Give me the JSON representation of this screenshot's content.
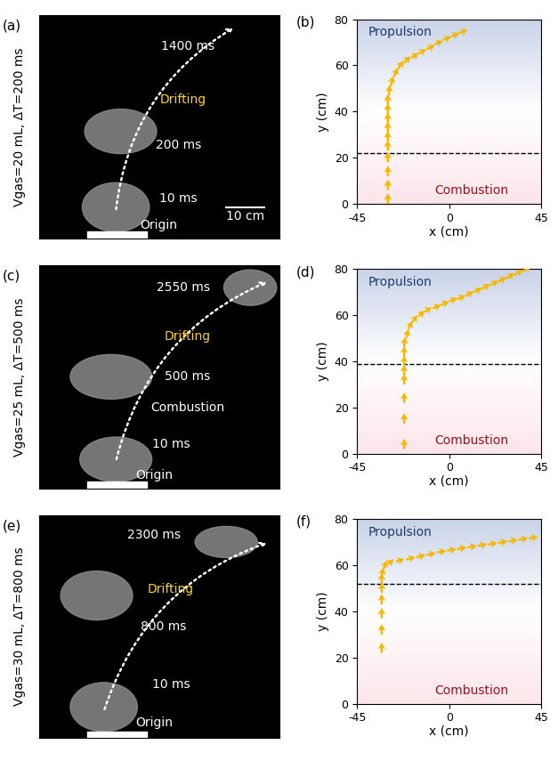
{
  "photos": [
    {
      "panel_label": "(a)",
      "side_label": "Vgas=20 mL, ΔT=200 ms",
      "texts": [
        "1400 ms",
        "Drifting",
        "200 ms",
        "10 ms",
        "Origin",
        "10 cm"
      ]
    },
    {
      "panel_label": "(c)",
      "side_label": "Vgas=25 mL, ΔT=500 ms",
      "texts": [
        "2550 ms",
        "Drifting",
        "500 ms",
        "Combustion",
        "10 ms",
        "Origin"
      ]
    },
    {
      "panel_label": "(e)",
      "side_label": "Vgas=30 mL, ΔT=800 ms",
      "texts": [
        "2300 ms",
        "Drifting",
        "800 ms",
        "10 ms",
        "Origin"
      ]
    }
  ],
  "chart_data": [
    {
      "type": "quiver",
      "panel_label": "(b)",
      "color": "#f5b800",
      "x": [
        -30,
        -30,
        -30,
        -30,
        -30,
        -30,
        -30,
        -30,
        -30,
        -30,
        -29.5,
        -28.5,
        -27,
        -25,
        -22,
        -18.5,
        -15,
        -11,
        -7,
        -3,
        1,
        5
      ],
      "y": [
        0,
        6,
        12,
        18,
        23,
        27,
        31,
        35,
        39,
        43,
        47,
        51,
        55,
        58.5,
        61,
        63,
        65,
        67,
        69,
        71,
        72.5,
        74
      ],
      "u": [
        0,
        0,
        0,
        0,
        0,
        0,
        0,
        0,
        0,
        0,
        0.5,
        1,
        1.8,
        2.5,
        3,
        3.5,
        3.8,
        4,
        4,
        4,
        4,
        4
      ],
      "v": [
        4.5,
        4.5,
        4.5,
        4.5,
        4.5,
        4.5,
        4.5,
        4.5,
        4.5,
        4.5,
        4.5,
        4.3,
        4,
        3.5,
        3,
        2.5,
        2,
        1.8,
        1.7,
        1.5,
        1.5,
        1.5
      ],
      "boundary_y": 22,
      "xlim": [
        -45,
        45
      ],
      "ylim": [
        0,
        80
      ],
      "xticks": [
        -45,
        0,
        45
      ],
      "yticks": [
        0,
        20,
        40,
        60,
        80
      ],
      "xlabel": "x (cm)",
      "ylabel": "y (cm)",
      "annotations": [
        "Propulsion",
        "Combustion"
      ]
    },
    {
      "type": "quiver",
      "panel_label": "(d)",
      "color": "#f5b800",
      "x": [
        -22,
        -22,
        -22,
        -22,
        -22,
        -22,
        -22,
        -22,
        -21,
        -20,
        -18,
        -15,
        -12,
        -8,
        -4,
        0,
        4,
        8,
        12,
        16,
        20,
        24,
        28,
        32,
        36
      ],
      "y": [
        2,
        13,
        22,
        30,
        34,
        38,
        42,
        46,
        50,
        54,
        57,
        59.5,
        61.5,
        63,
        64.5,
        66,
        67,
        68.5,
        70,
        71.5,
        73,
        74.5,
        76,
        77.5,
        79
      ],
      "u": [
        0,
        0,
        0,
        0,
        0,
        0,
        0,
        0.3,
        1,
        2,
        2.5,
        3,
        3.5,
        4,
        4,
        4,
        4,
        4,
        4,
        4,
        4,
        4,
        4,
        4,
        4
      ],
      "v": [
        4.5,
        4.5,
        4.5,
        4.5,
        4.5,
        4.5,
        4.5,
        4.5,
        4,
        3.5,
        3,
        2.5,
        2,
        1.5,
        1.5,
        1.5,
        1.5,
        1.8,
        1.8,
        2,
        2,
        2,
        2.2,
        2.3,
        2.5
      ],
      "boundary_y": 39,
      "xlim": [
        -45,
        45
      ],
      "ylim": [
        0,
        80
      ],
      "xticks": [
        -45,
        0,
        45
      ],
      "yticks": [
        0,
        20,
        40,
        60,
        80
      ],
      "xlabel": "x (cm)",
      "ylabel": "y (cm)",
      "annotations": [
        "Propulsion",
        "Combustion"
      ]
    },
    {
      "type": "quiver",
      "panel_label": "(f)",
      "color": "#f5b800",
      "x": [
        -33,
        -33,
        -33,
        -33,
        -33,
        -33,
        -33,
        -32,
        -30,
        -26,
        -21,
        -16,
        -11,
        -6,
        -1,
        4,
        9,
        14,
        19,
        24,
        29,
        34,
        39
      ],
      "y": [
        22,
        30,
        37,
        43,
        48,
        52,
        55,
        58.5,
        60.5,
        61.5,
        62.5,
        63.5,
        64.5,
        65.5,
        66.3,
        67,
        67.7,
        68.4,
        69,
        69.7,
        70.3,
        71,
        71.6
      ],
      "u": [
        0,
        0,
        0,
        0,
        0,
        0,
        0.8,
        1.5,
        3,
        4,
        4.5,
        4.5,
        4.5,
        4.5,
        4.5,
        4.5,
        4.5,
        4.5,
        4.5,
        4.5,
        4.5,
        4.5,
        4.5
      ],
      "v": [
        4.5,
        4.5,
        4.5,
        4.5,
        4.5,
        4.5,
        4,
        3.5,
        2,
        1.2,
        1,
        0.9,
        0.8,
        0.8,
        0.7,
        0.7,
        0.7,
        0.7,
        0.7,
        0.7,
        0.7,
        0.7,
        0.7
      ],
      "boundary_y": 52,
      "xlim": [
        -45,
        45
      ],
      "ylim": [
        0,
        80
      ],
      "xticks": [
        -45,
        0,
        45
      ],
      "yticks": [
        0,
        20,
        40,
        60,
        80
      ],
      "xlabel": "x (cm)",
      "ylabel": "y (cm)",
      "annotations": [
        "Propulsion",
        "Combustion"
      ]
    }
  ]
}
